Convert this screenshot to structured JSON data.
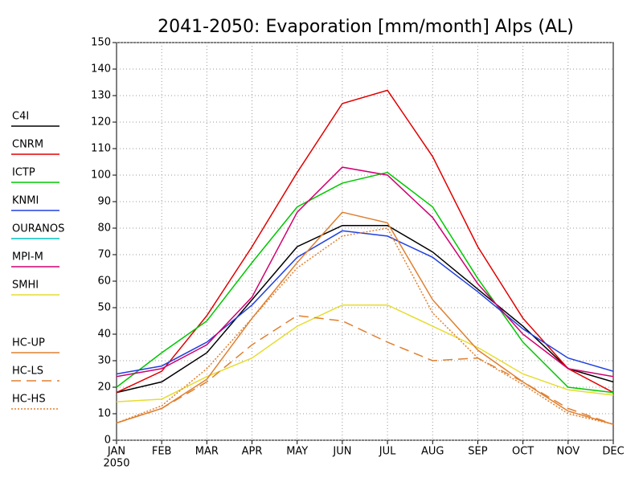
{
  "chart_data": {
    "type": "line",
    "title": "2041-2050: Evaporation [mm/month] Alps (AL)",
    "categories": [
      "JAN",
      "FEB",
      "MAR",
      "APR",
      "MAY",
      "JUN",
      "JUL",
      "AUG",
      "SEP",
      "OCT",
      "NOV",
      "DEC"
    ],
    "x_year_label": "2050",
    "ylim": [
      0,
      150
    ],
    "yticks": [
      0,
      10,
      20,
      30,
      40,
      50,
      60,
      70,
      80,
      90,
      100,
      110,
      120,
      130,
      140,
      150
    ],
    "grid": true,
    "legend": "left",
    "series": [
      {
        "name": "C4I",
        "color": "#000000",
        "dash": "solid",
        "values": [
          18,
          22,
          33,
          53,
          73,
          81,
          81,
          71,
          57,
          43,
          27,
          22
        ]
      },
      {
        "name": "CNRM",
        "color": "#e00000",
        "dash": "solid",
        "values": [
          18,
          26,
          47,
          73,
          101,
          127,
          132,
          107,
          73,
          46,
          27,
          18
        ]
      },
      {
        "name": "ICTP",
        "color": "#00c800",
        "dash": "solid",
        "values": [
          20,
          33,
          45,
          67,
          88,
          97,
          101,
          88,
          61,
          37,
          20,
          18
        ]
      },
      {
        "name": "KNMI",
        "color": "#2040e0",
        "dash": "solid",
        "values": [
          25,
          28,
          37,
          51,
          69,
          79,
          77,
          69,
          56,
          42,
          31,
          26
        ]
      },
      {
        "name": "OURANOS",
        "color": "#00c0c0",
        "dash": "solid",
        "values": [
          null,
          null,
          null,
          null,
          null,
          null,
          null,
          null,
          null,
          null,
          null,
          null
        ]
      },
      {
        "name": "MPI-M",
        "color": "#d00070",
        "dash": "solid",
        "values": [
          24,
          27,
          36,
          54,
          86,
          103,
          100,
          84,
          59,
          40,
          27,
          24
        ]
      },
      {
        "name": "SMHI",
        "color": "#e6dc32",
        "dash": "solid",
        "values": [
          14.5,
          15.5,
          24,
          31,
          43,
          51,
          51,
          43,
          35,
          25,
          19,
          17
        ]
      },
      {
        "name": "HC-UP",
        "color": "#e08030",
        "dash": "solid",
        "values": [
          6.5,
          12,
          23,
          46,
          67,
          86,
          82,
          53,
          34,
          22,
          11,
          6
        ]
      },
      {
        "name": "HC-LS",
        "color": "#e08030",
        "dash": "dashed",
        "values": [
          6.5,
          12,
          22,
          36,
          47,
          45,
          37,
          30,
          31,
          22,
          12,
          6
        ]
      },
      {
        "name": "HC-HS",
        "color": "#e08030",
        "dash": "dotted",
        "values": [
          6.5,
          13,
          27,
          46,
          65,
          77,
          80,
          48,
          31,
          21,
          10,
          6
        ]
      }
    ]
  }
}
